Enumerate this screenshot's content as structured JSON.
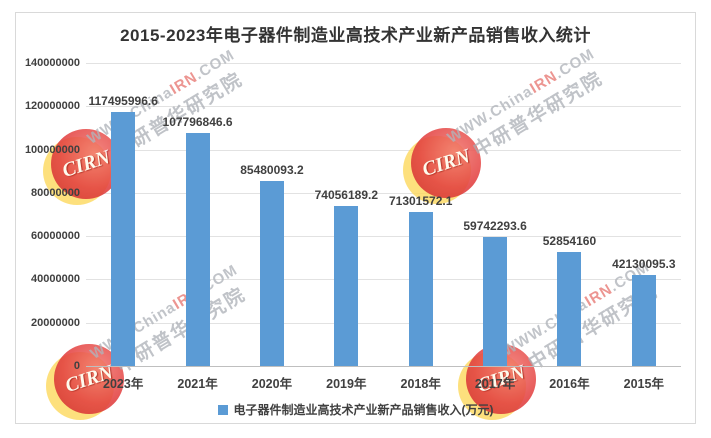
{
  "title": "2015-2023年电子器件制造业高技术产业新产品销售收入统计",
  "chart_data": {
    "type": "bar",
    "title": "2015-2023年电子器件制造业高技术产业新产品销售收入统计",
    "categories": [
      "2023年",
      "2021年",
      "2020年",
      "2019年",
      "2018年",
      "2017年",
      "2016年",
      "2015年"
    ],
    "values": [
      117495996.6,
      107796846.6,
      85480093.2,
      74056189.2,
      71301572.1,
      59742293.6,
      52854160,
      42130095.3
    ],
    "value_labels": [
      "117495996.6",
      "107796846.6",
      "85480093.2",
      "74056189.2",
      "71301572.1",
      "59742293.6",
      "52854160",
      "42130095.3"
    ],
    "y_ticks": [
      "140000000",
      "120000000",
      "100000000",
      "80000000",
      "60000000",
      "40000000",
      "20000000",
      "0"
    ],
    "ylim": [
      0,
      140000000
    ],
    "xlabel": "",
    "ylabel": "",
    "grid": true,
    "legend_position": "bottom",
    "legend": "电子器件制造业高技术产业新产品销售收入(万元)",
    "bar_color": "#5B9BD5"
  },
  "watermark": {
    "line1_part1": "WWW.China",
    "line1_part2": "IRN",
    "line1_part3": ".COM",
    "line2": "中研普华研究院",
    "logo": "CIRN"
  }
}
